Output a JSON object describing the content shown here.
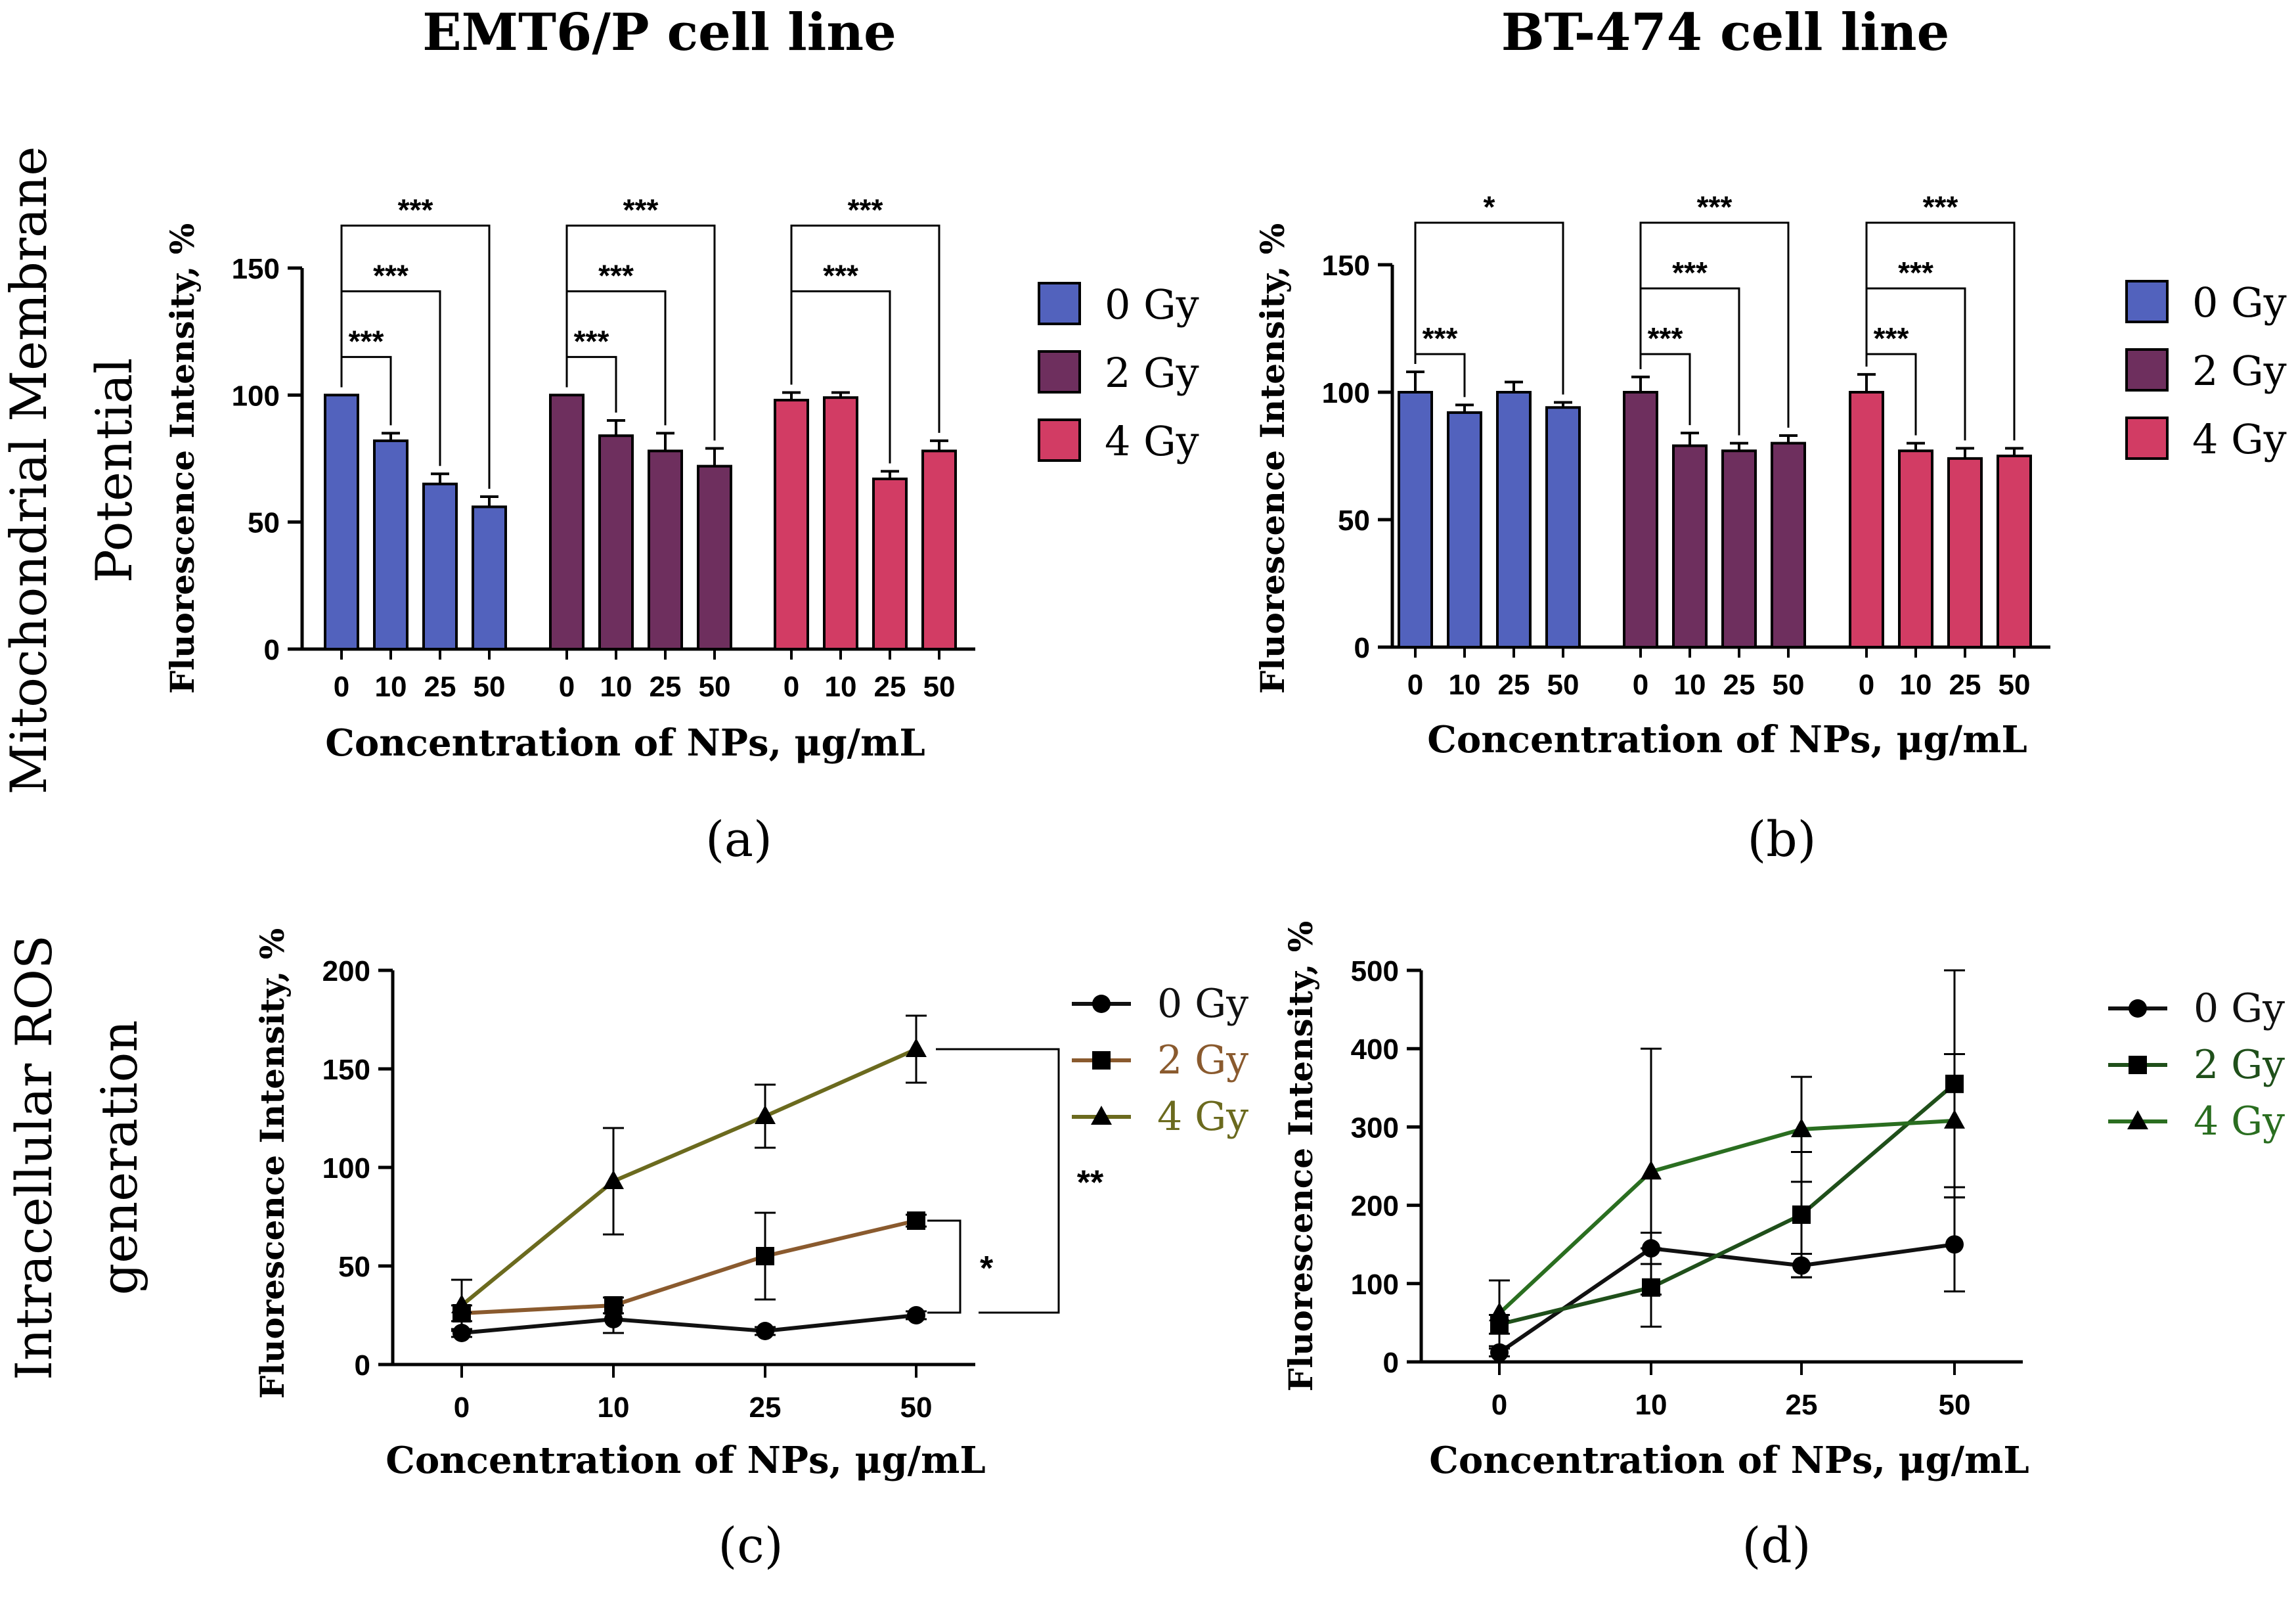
{
  "titles": {
    "left": "EMT6/P cell line",
    "right": "BT-474 cell line"
  },
  "row_labels": {
    "top": [
      "Mitochondrial Membrane",
      "Potential"
    ],
    "bottom": [
      "Intracellular ROS",
      "generation"
    ]
  },
  "panel_letters": {
    "a": "(a)",
    "b": "(b)",
    "c": "(c)",
    "d": "(d)"
  },
  "colors": {
    "blue": "#5262bd",
    "plum": "#6e2f5e",
    "pink": "#d23c64",
    "black": "#111111",
    "brown": "#8a5a2e",
    "olive": "#6b6a1e",
    "green": "#2a6e20"
  },
  "chart_data": [
    {
      "id": "a",
      "type": "bar",
      "title": "EMT6/P cell line",
      "xlabel": "Concentration of NPs, μg/mL",
      "ylabel": "Fluorescence Intensity, %",
      "ylim": [
        0,
        150
      ],
      "yticks": [
        "0",
        "50",
        "100",
        "150"
      ],
      "categories": [
        "0",
        "10",
        "25",
        "50"
      ],
      "series": [
        {
          "name": "0 Gy",
          "color": "#5262bd",
          "values": [
            100,
            82,
            65,
            56
          ],
          "errors": [
            0,
            3,
            4,
            4
          ]
        },
        {
          "name": "2 Gy",
          "color": "#6e2f5e",
          "values": [
            100,
            84,
            78,
            72
          ],
          "errors": [
            0,
            6,
            7,
            7
          ]
        },
        {
          "name": "4 Gy",
          "color": "#d23c64",
          "values": [
            98,
            99,
            67,
            78
          ],
          "errors": [
            3,
            2,
            3,
            4
          ]
        }
      ],
      "significance": [
        {
          "series": 0,
          "from": 0,
          "to": 1,
          "label": "***"
        },
        {
          "series": 0,
          "from": 0,
          "to": 2,
          "label": "***"
        },
        {
          "series": 0,
          "from": 0,
          "to": 3,
          "label": "***"
        },
        {
          "series": 1,
          "from": 0,
          "to": 1,
          "label": "***"
        },
        {
          "series": 1,
          "from": 0,
          "to": 2,
          "label": "***"
        },
        {
          "series": 1,
          "from": 0,
          "to": 3,
          "label": "***"
        },
        {
          "series": 2,
          "from": 0,
          "to": 2,
          "label": "***"
        },
        {
          "series": 2,
          "from": 0,
          "to": 3,
          "label": "***"
        }
      ],
      "legend": [
        "0 Gy",
        "2 Gy",
        "4 Gy"
      ]
    },
    {
      "id": "b",
      "type": "bar",
      "title": "BT-474 cell line",
      "xlabel": "Concentration of NPs, μg/mL",
      "ylabel": "Fluorescence Intensity, %",
      "ylim": [
        0,
        150
      ],
      "yticks": [
        "0",
        "50",
        "100",
        "150"
      ],
      "categories": [
        "0",
        "10",
        "25",
        "50"
      ],
      "series": [
        {
          "name": "0 Gy",
          "color": "#5262bd",
          "values": [
            100,
            92,
            100,
            94
          ],
          "errors": [
            8,
            3,
            4,
            2
          ]
        },
        {
          "name": "2 Gy",
          "color": "#6e2f5e",
          "values": [
            100,
            79,
            77,
            80
          ],
          "errors": [
            6,
            5,
            3,
            3
          ]
        },
        {
          "name": "4 Gy",
          "color": "#d23c64",
          "values": [
            100,
            77,
            74,
            75
          ],
          "errors": [
            7,
            3,
            4,
            3
          ]
        }
      ],
      "significance": [
        {
          "series": 0,
          "from": 0,
          "to": 1,
          "label": "***"
        },
        {
          "series": 0,
          "from": 0,
          "to": 3,
          "label": "*"
        },
        {
          "series": 1,
          "from": 0,
          "to": 1,
          "label": "***"
        },
        {
          "series": 1,
          "from": 0,
          "to": 2,
          "label": "***"
        },
        {
          "series": 1,
          "from": 0,
          "to": 3,
          "label": "***"
        },
        {
          "series": 2,
          "from": 0,
          "to": 1,
          "label": "***"
        },
        {
          "series": 2,
          "from": 0,
          "to": 2,
          "label": "***"
        },
        {
          "series": 2,
          "from": 0,
          "to": 3,
          "label": "***"
        }
      ],
      "legend": [
        "0 Gy",
        "2 Gy",
        "4 Gy"
      ]
    },
    {
      "id": "c",
      "type": "line",
      "xlabel": "Concentration of NPs, μg/mL",
      "ylabel": "Fluorescence Intensity, %",
      "ylim": [
        0,
        200
      ],
      "yticks": [
        "0",
        "50",
        "100",
        "150",
        "200"
      ],
      "categories": [
        "0",
        "10",
        "25",
        "50"
      ],
      "series": [
        {
          "name": "0 Gy",
          "color": "#111111",
          "marker": "circle",
          "values": [
            16,
            23,
            17,
            25
          ],
          "errors": [
            2,
            7,
            2,
            2
          ]
        },
        {
          "name": "2 Gy",
          "color": "#8a5a2e",
          "marker": "square",
          "values": [
            26,
            30,
            55,
            73
          ],
          "errors": [
            4,
            4,
            22,
            3
          ]
        },
        {
          "name": "4 Gy",
          "color": "#6b6a1e",
          "marker": "triangle",
          "values": [
            30,
            93,
            126,
            160
          ],
          "errors": [
            13,
            27,
            16,
            17
          ]
        }
      ],
      "significance": [
        {
          "between": [
            "0 Gy",
            "2 Gy"
          ],
          "label": "*"
        },
        {
          "between": [
            "0 Gy",
            "4 Gy"
          ],
          "label": "**"
        }
      ],
      "legend": [
        "0 Gy",
        "2 Gy",
        "4 Gy"
      ]
    },
    {
      "id": "d",
      "type": "line",
      "xlabel": "Concentration of NPs, μg/mL",
      "ylabel": "Fluorescence Intensity, %",
      "ylim": [
        0,
        500
      ],
      "yticks": [
        "0",
        "100",
        "200",
        "300",
        "400",
        "500"
      ],
      "categories": [
        "0",
        "10",
        "25",
        "50"
      ],
      "series": [
        {
          "name": "0 Gy",
          "color": "#111111",
          "marker": "circle",
          "values": [
            12,
            145,
            123,
            150
          ],
          "errors": [
            5,
            20,
            15,
            60
          ]
        },
        {
          "name": "2 Gy",
          "color": "#1f4f1a",
          "marker": "square",
          "values": [
            48,
            95,
            188,
            355
          ],
          "errors": [
            12,
            50,
            80,
            145
          ]
        },
        {
          "name": "4 Gy",
          "color": "#2a6e20",
          "marker": "triangle",
          "values": [
            62,
            243,
            297,
            308
          ],
          "errors": [
            42,
            157,
            67,
            85
          ]
        }
      ],
      "legend": [
        "0 Gy",
        "2 Gy",
        "4 Gy"
      ]
    }
  ]
}
